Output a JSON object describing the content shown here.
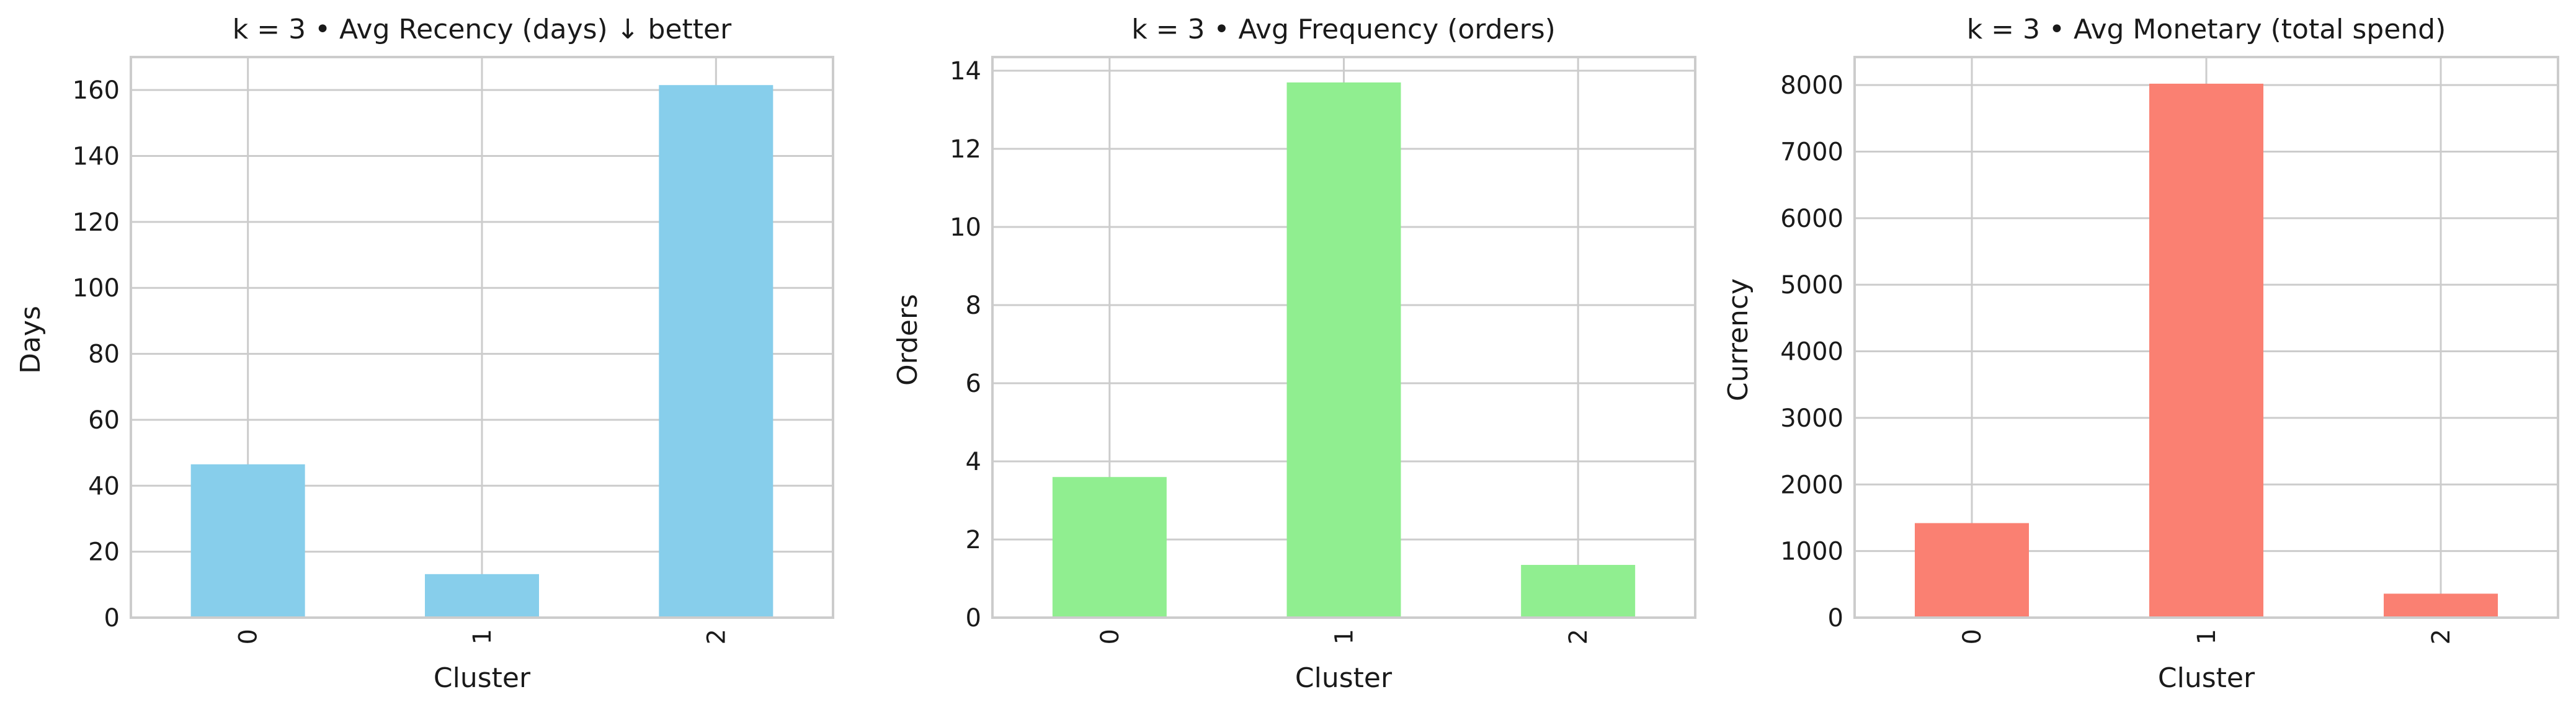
{
  "chart_data": [
    {
      "type": "bar",
      "title": "k = 3 • Avg Recency (days) ↓ better",
      "xlabel": "Cluster",
      "ylabel": "Days",
      "categories": [
        "0",
        "1",
        "2"
      ],
      "values": [
        46.5,
        13.2,
        161.5
      ],
      "ylim": [
        0,
        170
      ],
      "yticks": [
        0,
        20,
        40,
        60,
        80,
        100,
        120,
        140,
        160
      ],
      "color": "#87CEEB",
      "grid": true
    },
    {
      "type": "bar",
      "title": "k = 3 • Avg Frequency (orders)",
      "xlabel": "Cluster",
      "ylabel": "Orders",
      "categories": [
        "0",
        "1",
        "2"
      ],
      "values": [
        3.6,
        13.7,
        1.35
      ],
      "ylim": [
        0,
        14.35
      ],
      "yticks": [
        0,
        2,
        4,
        6,
        8,
        10,
        12,
        14
      ],
      "color": "#90EE90",
      "grid": true
    },
    {
      "type": "bar",
      "title": "k = 3 • Avg Monetary (total spend)",
      "xlabel": "Cluster",
      "ylabel": "Currency",
      "categories": [
        "0",
        "1",
        "2"
      ],
      "values": [
        1420,
        8020,
        360
      ],
      "ylim": [
        0,
        8420
      ],
      "yticks": [
        0,
        1000,
        2000,
        3000,
        4000,
        5000,
        6000,
        7000,
        8000
      ],
      "color": "#FA8072",
      "grid": true
    }
  ]
}
